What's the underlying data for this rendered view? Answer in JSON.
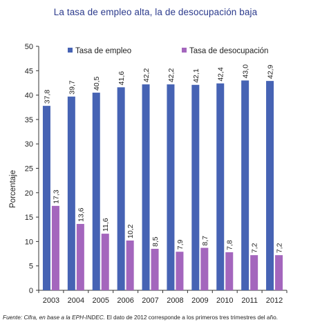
{
  "title": "La tasa de empleo alta, la de desocupación baja",
  "source": {
    "prefix": "Fuente: Cifra, en base a la EPH-INDEC.",
    "note": " El dato de 2012 corresponde a los primeros tres trimestres del año."
  },
  "colors": {
    "empleo": "#4663b4",
    "desocupacion": "#a466bd",
    "axis": "#333333"
  },
  "chart_data": {
    "type": "bar",
    "categories": [
      "2003",
      "2004",
      "2005",
      "2006",
      "2007",
      "2008",
      "2009",
      "2010",
      "2011",
      "2012"
    ],
    "series": [
      {
        "name": "Tasa de empleo",
        "values": [
          37.8,
          39.7,
          40.5,
          41.6,
          42.2,
          42.2,
          42.1,
          42.4,
          43.0,
          42.9
        ],
        "labels": [
          "37,8",
          "39,7",
          "40,5",
          "41,6",
          "42,2",
          "42,2",
          "42,1",
          "42,4",
          "43,0",
          "42,9"
        ]
      },
      {
        "name": "Tasa de desocupación",
        "values": [
          17.3,
          13.6,
          11.6,
          10.2,
          8.5,
          7.9,
          8.7,
          7.8,
          7.2,
          7.2
        ],
        "labels": [
          "17,3",
          "13,6",
          "11,6",
          "10,2",
          "8,5",
          "7,9",
          "8,7",
          "7,8",
          "7,2",
          "7,2"
        ]
      }
    ],
    "ylabel": "Porcentaje",
    "xlabel": "",
    "ylim": [
      0,
      50
    ],
    "yticks": [
      0,
      5,
      10,
      15,
      20,
      25,
      30,
      35,
      40,
      45,
      50
    ],
    "grid": false,
    "legend": "top"
  }
}
